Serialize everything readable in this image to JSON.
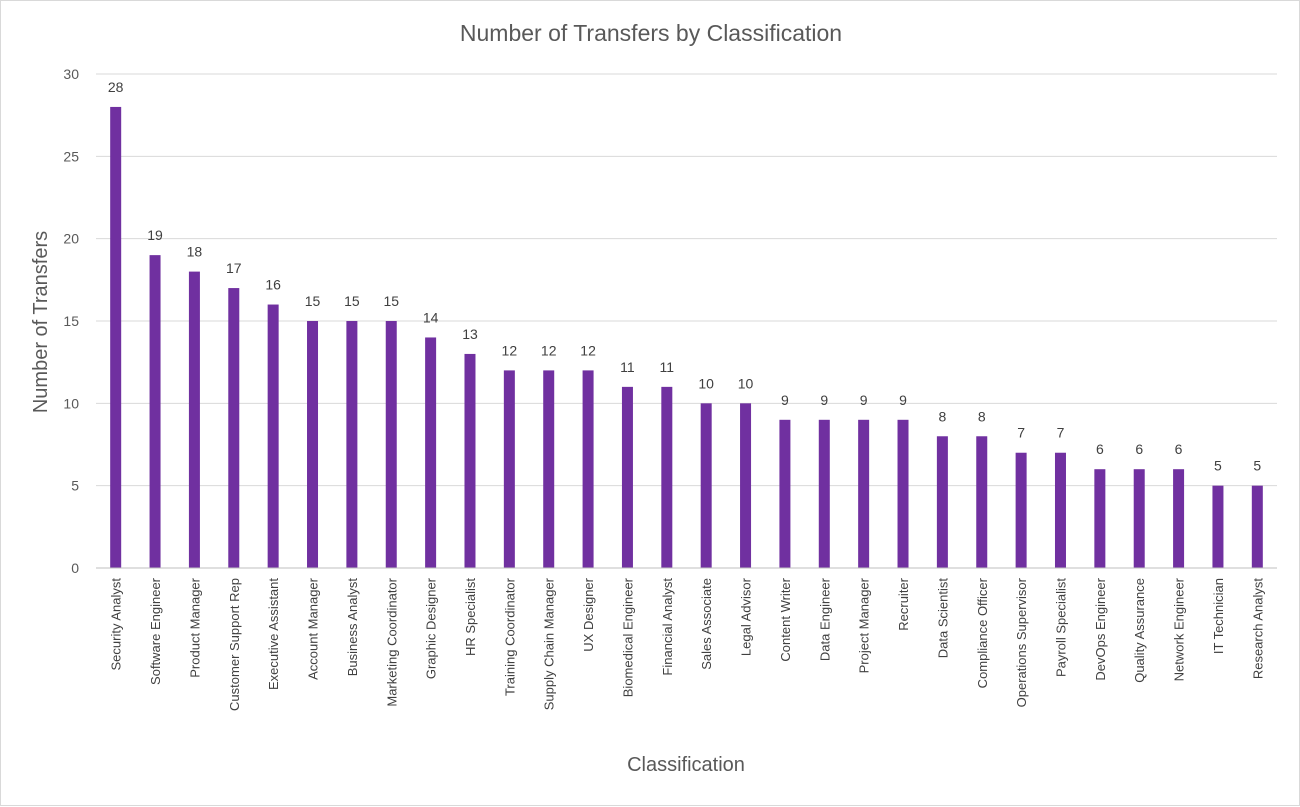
{
  "chart_data": {
    "type": "bar",
    "title": "Number of Transfers by Classification",
    "xlabel": "Classification",
    "ylabel": "Number of Transfers",
    "ylim": [
      0,
      30
    ],
    "yticks": [
      0,
      5,
      10,
      15,
      20,
      25,
      30
    ],
    "grid": true,
    "legend": "none",
    "bar_color": "#7030a0",
    "categories": [
      "Security Analyst",
      "Software Engineer",
      "Product Manager",
      "Customer Support Rep",
      "Executive Assistant",
      "Account Manager",
      "Business Analyst",
      "Marketing Coordinator",
      "Graphic Designer",
      "HR Specialist",
      "Training Coordinator",
      "Supply Chain Manager",
      "UX Designer",
      "Biomedical Engineer",
      "Financial Analyst",
      "Sales Associate",
      "Legal Advisor",
      "Content Writer",
      "Data Engineer",
      "Project Manager",
      "Recruiter",
      "Data Scientist",
      "Compliance Officer",
      "Operations Supervisor",
      "Payroll Specialist",
      "DevOps Engineer",
      "Quality Assurance",
      "Network Engineer",
      "IT Technician",
      "Research Analyst"
    ],
    "values": [
      28,
      19,
      18,
      17,
      16,
      15,
      15,
      15,
      14,
      13,
      12,
      12,
      12,
      11,
      11,
      10,
      10,
      9,
      9,
      9,
      9,
      8,
      8,
      7,
      7,
      6,
      6,
      6,
      5,
      5
    ]
  }
}
